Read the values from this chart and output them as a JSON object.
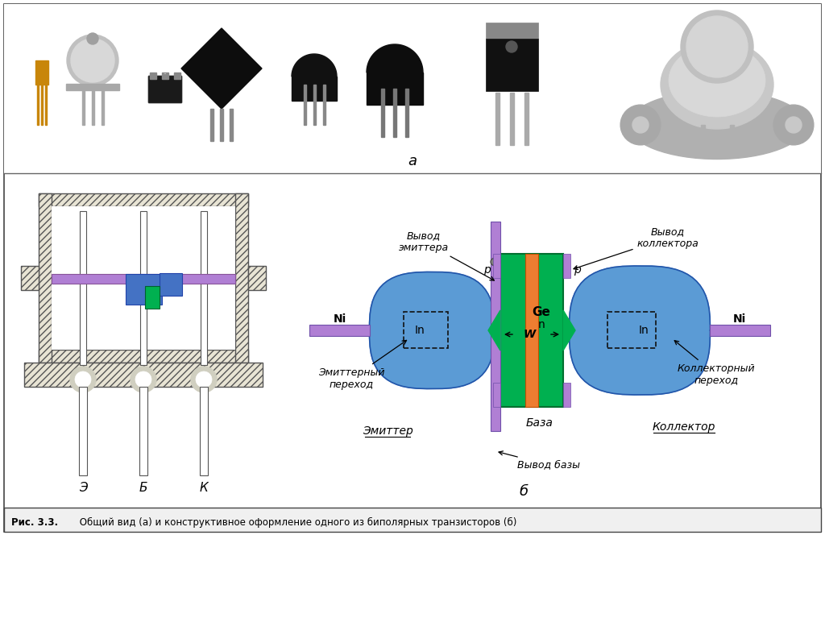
{
  "bg_color": "#ffffff",
  "figure_width": 10.24,
  "figure_height": 7.67,
  "caption_bold": "Рис. 3.3.",
  "caption_normal": " Общий вид (а) и конструктивное оформление одного из биполярных транзисторов (б)",
  "label_a": "а",
  "label_b": "б",
  "label_E": "Э",
  "label_B": "Б",
  "label_K": "К",
  "label_emitter_lead": "Вывод\nэмиттера",
  "label_collector_lead": "Вывод\nколлектора",
  "label_base_lead": "Вывод базы",
  "label_emitter_junction": "Эмиттерный\nпереход",
  "label_collector_junction": "Коллекторный\nпереход",
  "label_emitter": "Эмиттер",
  "label_collector": "Коллектор",
  "label_base": "База",
  "green_color": "#00b050",
  "blue_color": "#5b9bd5",
  "purple_color": "#b07fd4",
  "orange_color": "#ed7d31",
  "hatch_color": "#888888"
}
